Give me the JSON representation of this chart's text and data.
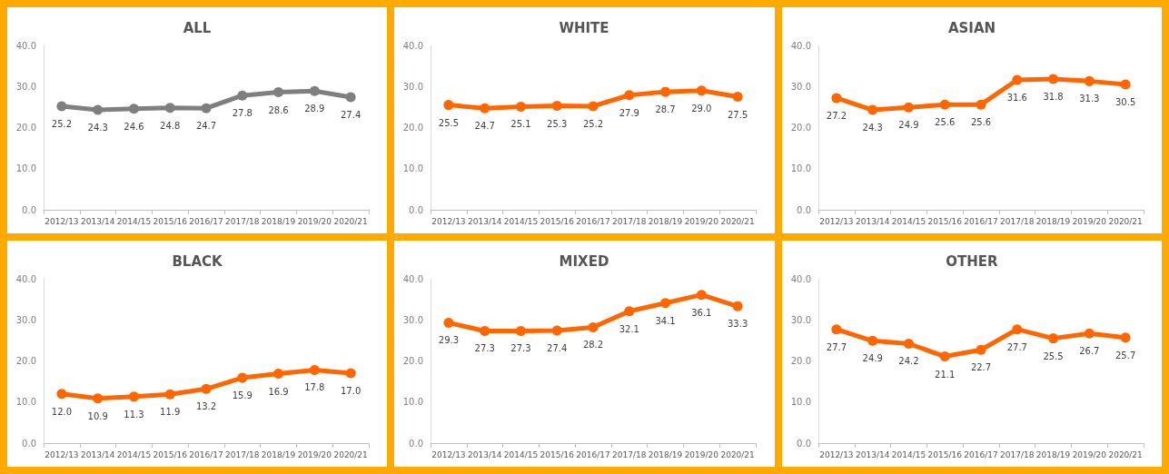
{
  "chart_data": [
    {
      "type": "line",
      "title": "ALL",
      "categories": [
        "2012/13",
        "2013/14",
        "2014/15",
        "2015/16",
        "2016/17",
        "2017/18",
        "2018/19",
        "2019/20",
        "2020/21"
      ],
      "series": [
        {
          "color": "#7f7f7f",
          "values": [
            25.2,
            24.3,
            24.6,
            24.8,
            24.7,
            27.8,
            28.6,
            28.9,
            27.4
          ],
          "value_labels": [
            "25.2",
            "24.3",
            "24.6",
            "24.8",
            "24.7",
            "27.8",
            "28.6",
            "28.9",
            "27.4"
          ]
        }
      ],
      "ylim": [
        0,
        40
      ],
      "yticks": [
        {
          "value": 0,
          "label": "0.0"
        },
        {
          "value": 10,
          "label": "10.0"
        },
        {
          "value": 20,
          "label": "20.0"
        },
        {
          "value": 30,
          "label": "30.0"
        },
        {
          "value": 40,
          "label": "40.0"
        }
      ],
      "marker": "circle",
      "grid": false
    },
    {
      "type": "line",
      "title": "WHITE",
      "categories": [
        "2012/13",
        "2013/14",
        "2014/15",
        "2015/16",
        "2016/17",
        "2017/18",
        "2018/19",
        "2019/20",
        "2020/21"
      ],
      "series": [
        {
          "color": "#ff6600",
          "values": [
            25.5,
            24.7,
            25.1,
            25.3,
            25.2,
            27.9,
            28.7,
            29.0,
            27.5
          ],
          "value_labels": [
            "25.5",
            "24.7",
            "25.1",
            "25.3",
            "25.2",
            "27.9",
            "28.7",
            "29.0",
            "27.5"
          ]
        }
      ],
      "ylim": [
        0,
        40
      ],
      "yticks": [
        {
          "value": 0,
          "label": "0.0"
        },
        {
          "value": 10,
          "label": "10.0"
        },
        {
          "value": 20,
          "label": "20.0"
        },
        {
          "value": 30,
          "label": "30.0"
        },
        {
          "value": 40,
          "label": "40.0"
        }
      ],
      "marker": "circle",
      "grid": false
    },
    {
      "type": "line",
      "title": "ASIAN",
      "categories": [
        "2012/13",
        "2013/14",
        "2014/15",
        "2015/16",
        "2016/17",
        "2017/18",
        "2018/19",
        "2019/20",
        "2020/21"
      ],
      "series": [
        {
          "color": "#ff6600",
          "values": [
            27.2,
            24.3,
            24.9,
            25.6,
            25.6,
            31.6,
            31.8,
            31.3,
            30.5
          ],
          "value_labels": [
            "27.2",
            "24.3",
            "24.9",
            "25.6",
            "25.6",
            "31.6",
            "31.8",
            "31.3",
            "30.5"
          ]
        }
      ],
      "ylim": [
        0,
        40
      ],
      "yticks": [
        {
          "value": 0,
          "label": "0.0"
        },
        {
          "value": 10,
          "label": "10.0"
        },
        {
          "value": 20,
          "label": "20.0"
        },
        {
          "value": 30,
          "label": "30.0"
        },
        {
          "value": 40,
          "label": "40.0"
        }
      ],
      "marker": "circle",
      "grid": false
    },
    {
      "type": "line",
      "title": "BLACK",
      "categories": [
        "2012/13",
        "2013/14",
        "2014/15",
        "2015/16",
        "2016/17",
        "2017/18",
        "2018/19",
        "2019/20",
        "2020/21"
      ],
      "series": [
        {
          "color": "#ff6600",
          "values": [
            12.0,
            10.9,
            11.3,
            11.9,
            13.2,
            15.9,
            16.9,
            17.8,
            17.0
          ],
          "value_labels": [
            "12.0",
            "10.9",
            "11.3",
            "11.9",
            "13.2",
            "15.9",
            "16.9",
            "17.8",
            "17.0"
          ]
        }
      ],
      "ylim": [
        0,
        40
      ],
      "yticks": [
        {
          "value": 0,
          "label": "0.0"
        },
        {
          "value": 10,
          "label": "10.0"
        },
        {
          "value": 20,
          "label": "20.0"
        },
        {
          "value": 30,
          "label": "30.0"
        },
        {
          "value": 40,
          "label": "40.0"
        }
      ],
      "marker": "circle",
      "grid": false
    },
    {
      "type": "line",
      "title": "MIXED",
      "categories": [
        "2012/13",
        "2013/14",
        "2014/15",
        "2015/16",
        "2016/17",
        "2017/18",
        "2018/19",
        "2019/20",
        "2020/21"
      ],
      "series": [
        {
          "color": "#ff6600",
          "values": [
            29.3,
            27.3,
            27.3,
            27.4,
            28.2,
            32.1,
            34.1,
            36.1,
            33.3
          ],
          "value_labels": [
            "29.3",
            "27.3",
            "27.3",
            "27.4",
            "28.2",
            "32.1",
            "34.1",
            "36.1",
            "33.3"
          ]
        }
      ],
      "ylim": [
        0,
        40
      ],
      "yticks": [
        {
          "value": 0,
          "label": "0.0"
        },
        {
          "value": 10,
          "label": "10.0"
        },
        {
          "value": 20,
          "label": "20.0"
        },
        {
          "value": 30,
          "label": "30.0"
        },
        {
          "value": 40,
          "label": "40.0"
        }
      ],
      "marker": "circle",
      "grid": false
    },
    {
      "type": "line",
      "title": "OTHER",
      "categories": [
        "2012/13",
        "2013/14",
        "2014/15",
        "2015/16",
        "2016/17",
        "2017/18",
        "2018/19",
        "2019/20",
        "2020/21"
      ],
      "series": [
        {
          "color": "#ff6600",
          "values": [
            27.7,
            24.9,
            24.2,
            21.1,
            22.7,
            27.7,
            25.5,
            26.7,
            25.7
          ],
          "value_labels": [
            "27.7",
            "24.9",
            "24.2",
            "21.1",
            "22.7",
            "27.7",
            "25.5",
            "26.7",
            "25.7"
          ]
        }
      ],
      "ylim": [
        0,
        40
      ],
      "yticks": [
        {
          "value": 0,
          "label": "0.0"
        },
        {
          "value": 10,
          "label": "10.0"
        },
        {
          "value": 20,
          "label": "20.0"
        },
        {
          "value": 30,
          "label": "30.0"
        },
        {
          "value": 40,
          "label": "40.0"
        }
      ],
      "marker": "circle",
      "grid": false
    }
  ]
}
